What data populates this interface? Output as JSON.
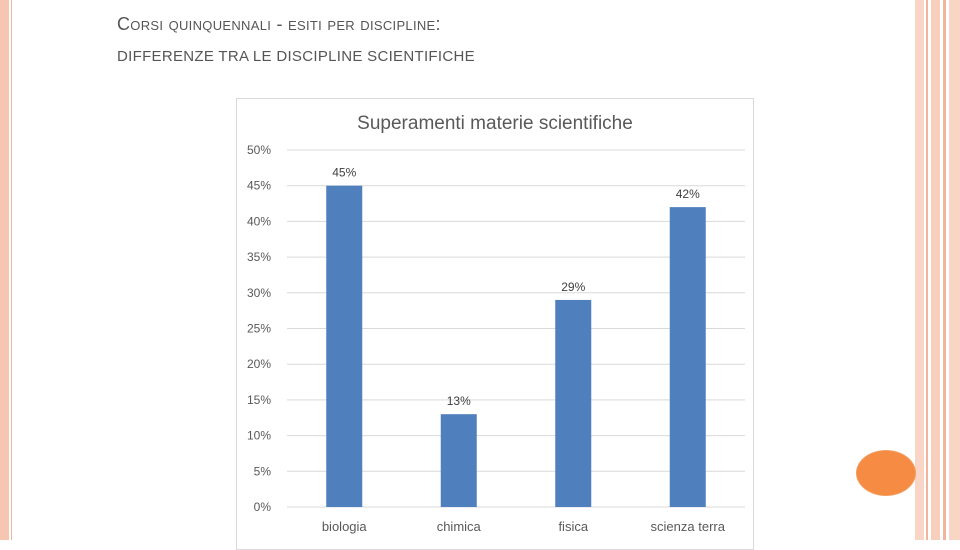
{
  "slide": {
    "title": "Corsi quinquennali - esiti per discipline:",
    "subtitle": "DIFFERENZE TRA LE DISCIPLINE SCIENTIFICHE"
  },
  "colors": {
    "bar": "#4f7fbd",
    "accent_dot": "#f68b43",
    "border": "#f6c6b2"
  },
  "chart_data": {
    "type": "bar",
    "title": "Superamenti materie scientifiche",
    "categories": [
      "biologia",
      "chimica",
      "fisica",
      "scienza terra"
    ],
    "values": [
      45,
      13,
      29,
      42
    ],
    "data_labels": [
      "45%",
      "13%",
      "29%",
      "42%"
    ],
    "y_ticks": [
      "0%",
      "5%",
      "10%",
      "15%",
      "20%",
      "25%",
      "30%",
      "35%",
      "40%",
      "45%",
      "50%"
    ],
    "ylim": [
      0,
      50
    ],
    "grid": true,
    "legend": "none"
  }
}
